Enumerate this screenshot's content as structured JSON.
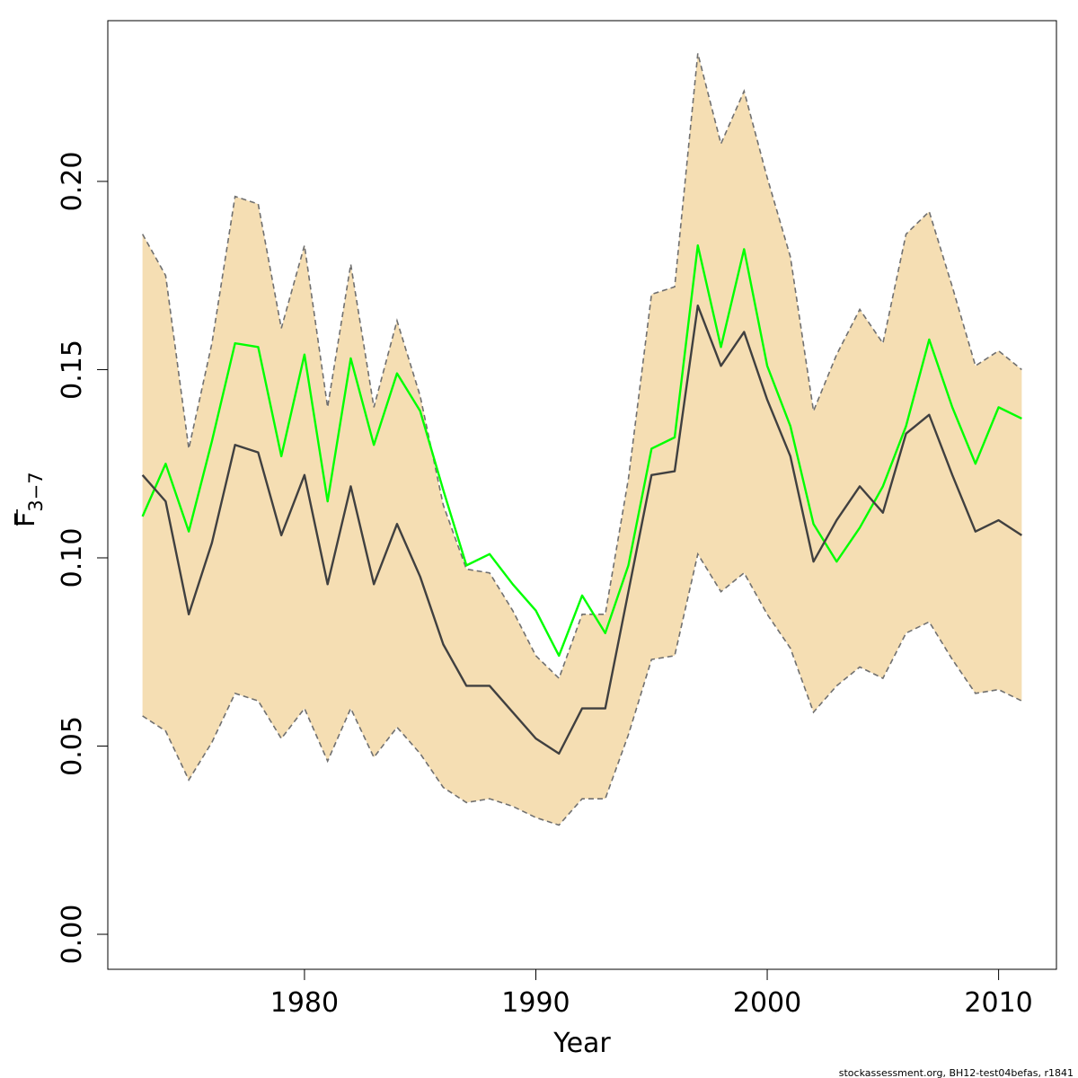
{
  "chart_data": {
    "type": "line",
    "xlabel": "Year",
    "ylabel": "F",
    "ylabel_subscript": "3−7",
    "xlim": [
      1971.5,
      2012.5
    ],
    "ylim": [
      -0.0093,
      0.2427
    ],
    "xticks": [
      1980,
      1990,
      2000,
      2010
    ],
    "xtick_labels": [
      "1980",
      "1990",
      "2000",
      "2010"
    ],
    "yticks": [
      0.0,
      0.05,
      0.1,
      0.15,
      0.2
    ],
    "ytick_labels": [
      "0.00",
      "0.05",
      "0.10",
      "0.15",
      "0.20"
    ],
    "grid": false,
    "x": [
      1973,
      1974,
      1975,
      1976,
      1977,
      1978,
      1979,
      1980,
      1981,
      1982,
      1983,
      1984,
      1985,
      1986,
      1987,
      1988,
      1989,
      1990,
      1991,
      1992,
      1993,
      1994,
      1995,
      1996,
      1997,
      1998,
      1999,
      2000,
      2001,
      2002,
      2003,
      2004,
      2005,
      2006,
      2007,
      2008,
      2009,
      2010,
      2011
    ],
    "band": {
      "upper": [
        0.186,
        0.175,
        0.129,
        0.157,
        0.196,
        0.194,
        0.161,
        0.183,
        0.14,
        0.178,
        0.14,
        0.163,
        0.143,
        0.114,
        0.097,
        0.096,
        0.086,
        0.074,
        0.068,
        0.085,
        0.085,
        0.121,
        0.17,
        0.172,
        0.234,
        0.21,
        0.224,
        0.201,
        0.18,
        0.139,
        0.154,
        0.166,
        0.157,
        0.186,
        0.192,
        0.172,
        0.151,
        0.155,
        0.15
      ],
      "lower": [
        0.058,
        0.054,
        0.041,
        0.051,
        0.064,
        0.062,
        0.052,
        0.06,
        0.046,
        0.06,
        0.047,
        0.055,
        0.048,
        0.039,
        0.035,
        0.036,
        0.034,
        0.031,
        0.029,
        0.036,
        0.036,
        0.053,
        0.073,
        0.074,
        0.101,
        0.091,
        0.096,
        0.085,
        0.076,
        0.059,
        0.066,
        0.071,
        0.068,
        0.08,
        0.083,
        0.073,
        0.064,
        0.065,
        0.062
      ],
      "color": "#f5deb3",
      "edge_color": "#707070"
    },
    "series": [
      {
        "color": "#00ff00",
        "values": [
          0.111,
          0.125,
          0.107,
          0.131,
          0.157,
          0.156,
          0.127,
          0.154,
          0.115,
          0.153,
          0.13,
          0.149,
          0.139,
          0.118,
          0.098,
          0.101,
          0.093,
          0.086,
          0.074,
          0.09,
          0.08,
          0.098,
          0.129,
          0.132,
          0.183,
          0.156,
          0.182,
          0.151,
          0.135,
          0.109,
          0.099,
          0.108,
          0.119,
          0.135,
          0.158,
          0.14,
          0.125,
          0.14,
          0.137
        ]
      },
      {
        "color": "#404040",
        "values": [
          0.122,
          0.115,
          0.085,
          0.104,
          0.13,
          0.128,
          0.106,
          0.122,
          0.093,
          0.119,
          0.093,
          0.109,
          0.095,
          0.077,
          0.066,
          0.066,
          0.059,
          0.052,
          0.048,
          0.06,
          0.06,
          0.091,
          0.122,
          0.123,
          0.167,
          0.151,
          0.16,
          0.142,
          0.127,
          0.099,
          0.11,
          0.119,
          0.112,
          0.133,
          0.138,
          0.122,
          0.107,
          0.11,
          0.106
        ]
      }
    ]
  },
  "footer": {
    "note": "stockassessment.org, BH12-test04befas, r1841"
  }
}
